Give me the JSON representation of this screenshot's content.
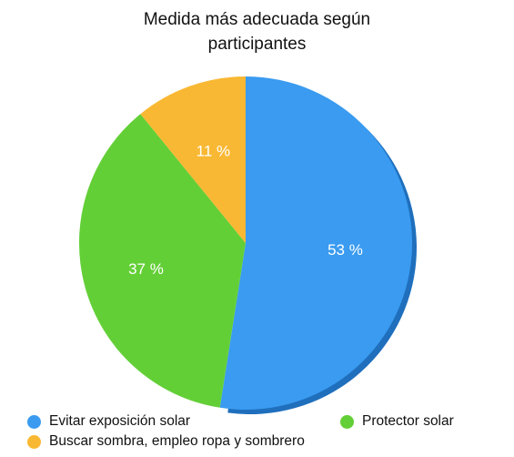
{
  "chart_data": {
    "type": "pie",
    "title_lines": [
      "Medida más adecuada según",
      "participantes"
    ],
    "series": [
      {
        "name": "Evitar exposición solar",
        "value": 53,
        "label": "53 %",
        "color": "#3A9BF0"
      },
      {
        "name": "Protector solar",
        "value": 37,
        "label": "37 %",
        "color": "#63CF37"
      },
      {
        "name": "Buscar sombra, empleo ropa y sombrero",
        "value": 11,
        "label": "11 %",
        "color": "#F9B833"
      }
    ],
    "legend_position": "bottom"
  }
}
